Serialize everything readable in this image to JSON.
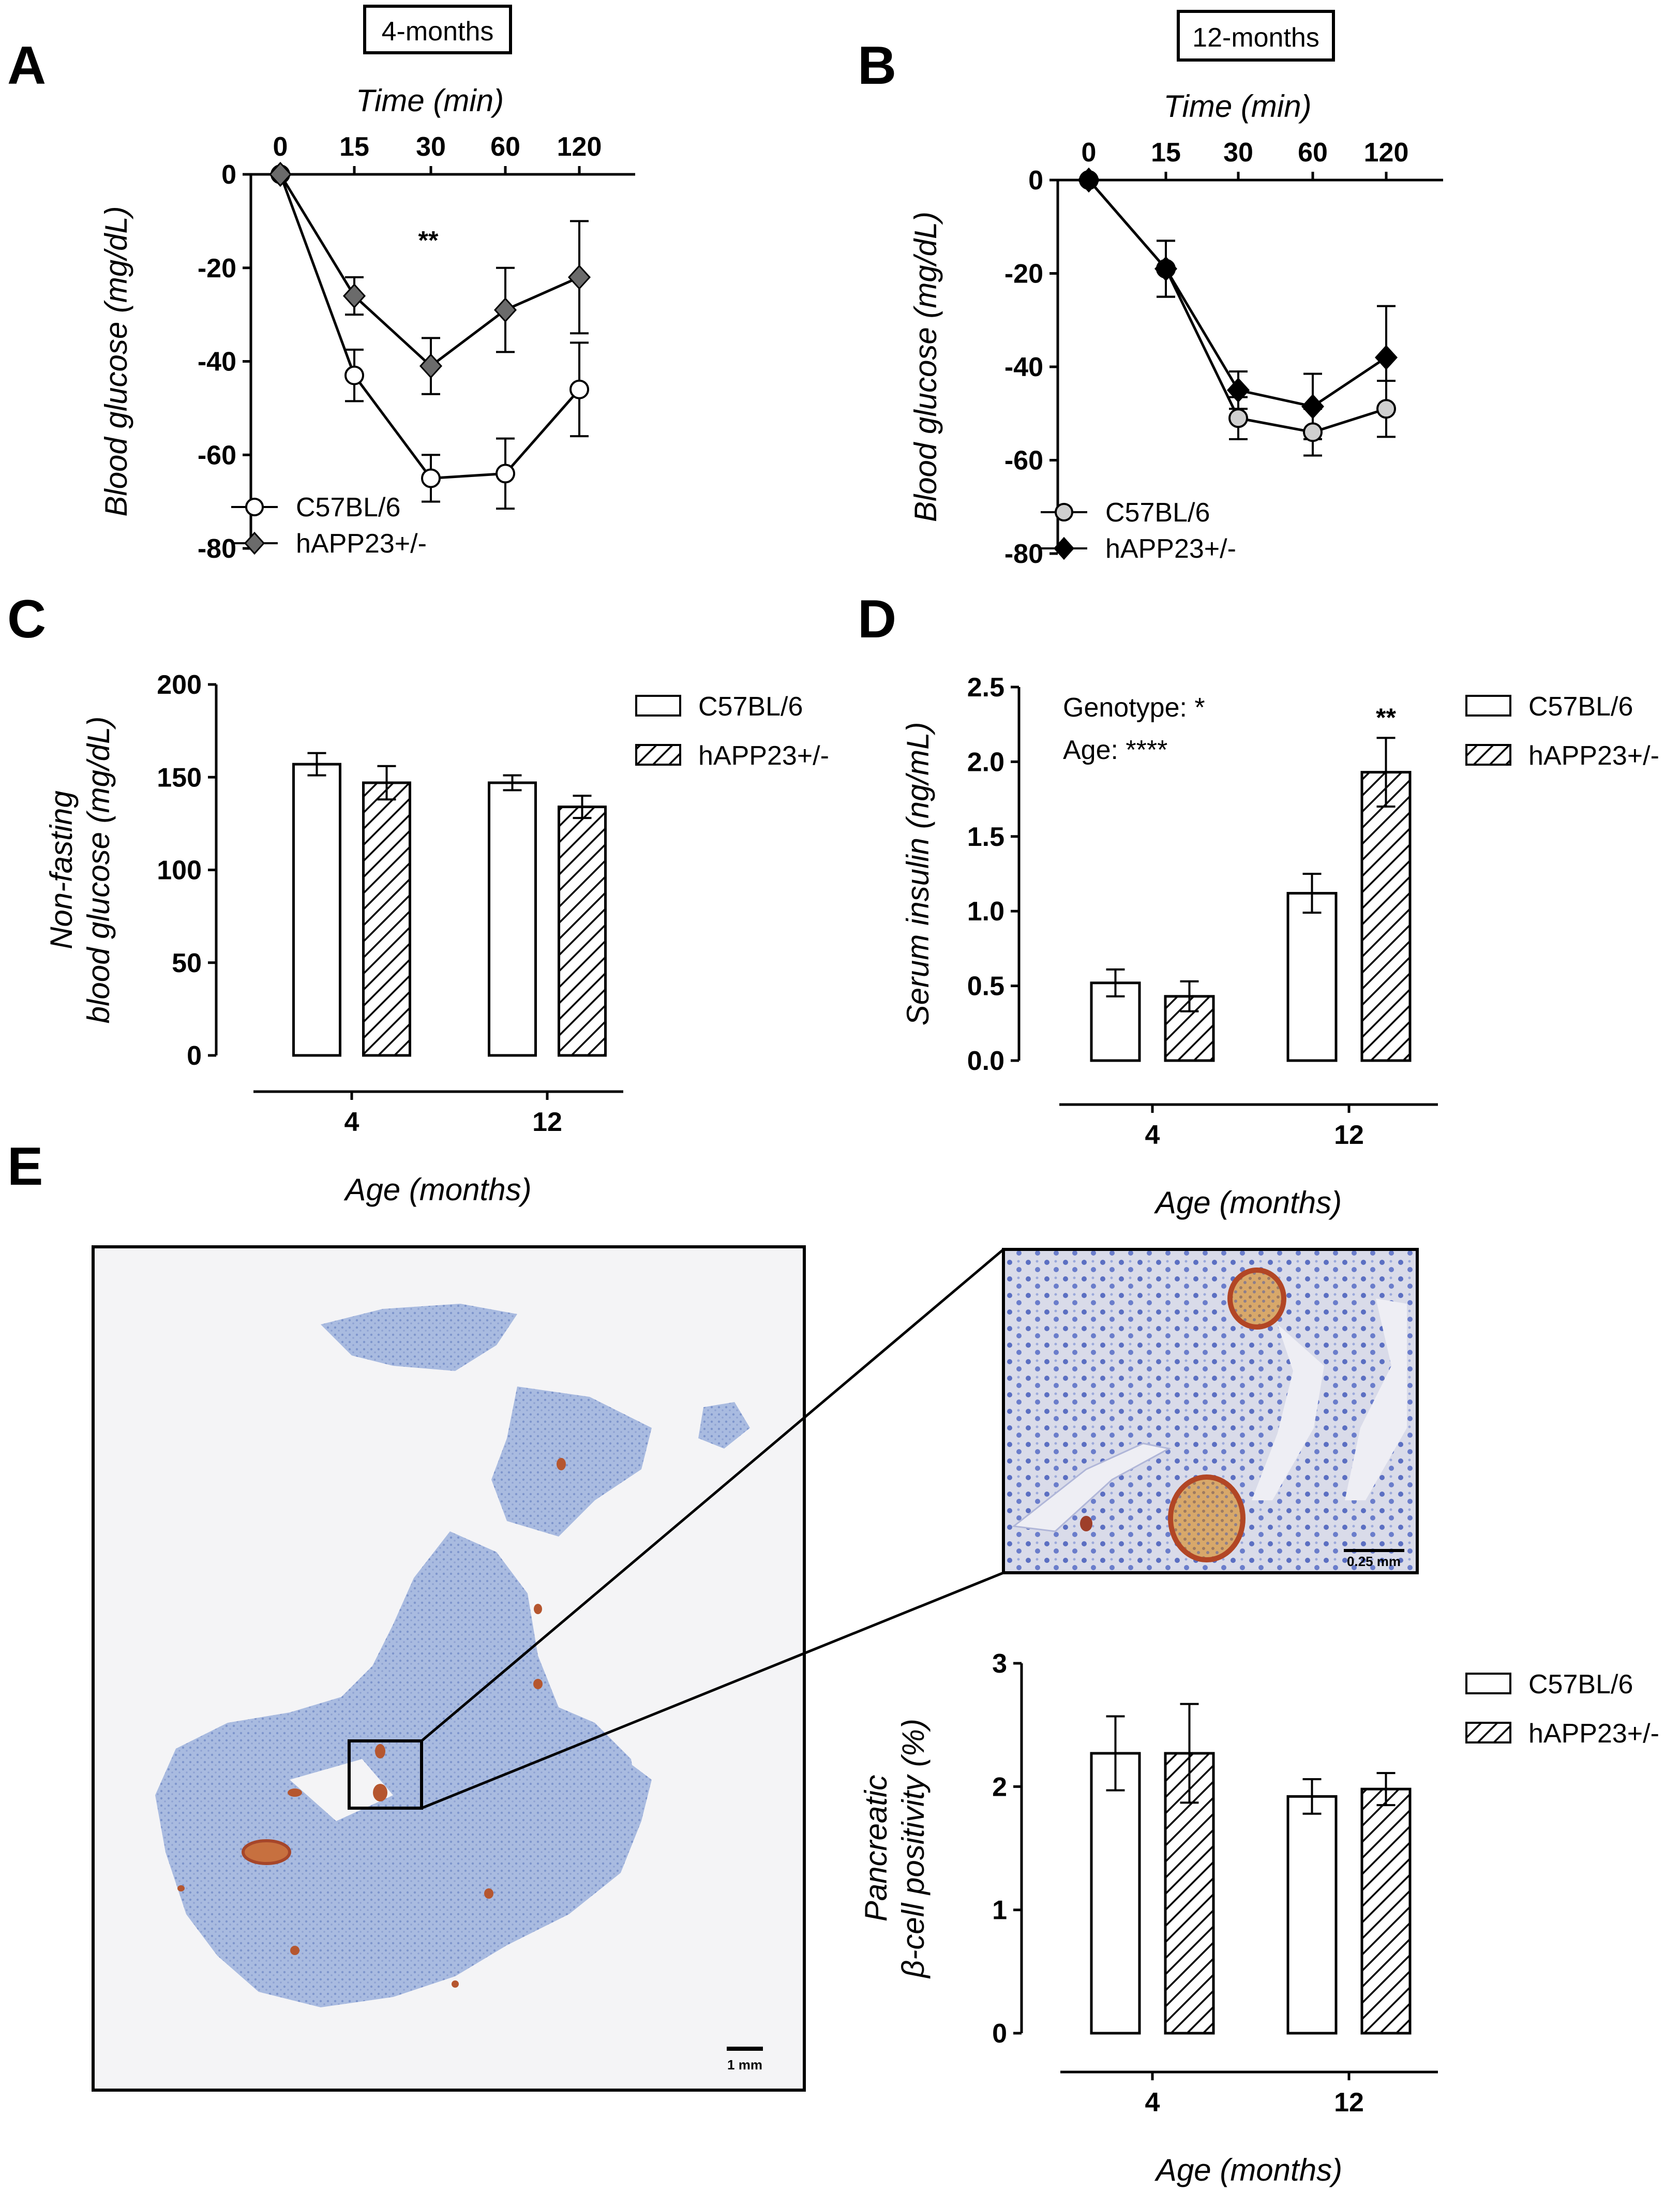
{
  "panels": {
    "A": {
      "label": "A",
      "box": "4-months"
    },
    "B": {
      "label": "B",
      "box": "12-months"
    },
    "C": {
      "label": "C"
    },
    "D": {
      "label": "D"
    },
    "E": {
      "label": "E"
    }
  },
  "scalebars": {
    "overview": "1 mm",
    "inset": "0.25 mm"
  },
  "colors": {
    "c57_fill_A": "#ffffff",
    "happ_fill_A": "#6b6b6b",
    "c57_fill_B": "#cfcfcf",
    "happ_fill_B": "#000000",
    "tissue": "#9fb2d9",
    "islet": "#b5562f"
  },
  "chart_data": [
    {
      "id": "A",
      "type": "line",
      "title": "4-months",
      "xlabel": "Time (min)",
      "ylabel": "Blood glucose (mg/dL)",
      "x": [
        0,
        15,
        30,
        60,
        120
      ],
      "x_ticks": [
        "0",
        "15",
        "30",
        "60",
        "120"
      ],
      "ylim": [
        -80,
        0
      ],
      "y_ticks": [
        "0",
        "-20",
        "-40",
        "-60",
        "-80"
      ],
      "series": [
        {
          "name": "C57BL/6",
          "marker": "circle",
          "values": [
            0,
            -43,
            -65,
            -64,
            -46
          ],
          "errors": [
            0,
            5.5,
            5,
            7.5,
            10
          ]
        },
        {
          "name": "hAPP23+/-",
          "marker": "diamond",
          "values": [
            0,
            -26,
            -41,
            -29,
            -22
          ],
          "errors": [
            0,
            4,
            6,
            9,
            12
          ]
        }
      ],
      "annotations": [
        {
          "x": 30,
          "text": "**"
        }
      ]
    },
    {
      "id": "B",
      "type": "line",
      "title": "12-months",
      "xlabel": "Time (min)",
      "ylabel": "Blood glucose (mg/dL)",
      "x": [
        0,
        15,
        30,
        60,
        120
      ],
      "x_ticks": [
        "0",
        "15",
        "30",
        "60",
        "120"
      ],
      "ylim": [
        -80,
        0
      ],
      "y_ticks": [
        "0",
        "-20",
        "-40",
        "-60",
        "-80"
      ],
      "series": [
        {
          "name": "C57BL/6",
          "marker": "circle",
          "values": [
            0,
            -19,
            -51,
            -54,
            -49
          ],
          "errors": [
            0,
            6,
            4.5,
            5,
            6
          ]
        },
        {
          "name": "hAPP23+/-",
          "marker": "diamond",
          "values": [
            0,
            -19,
            -45,
            -48.5,
            -38
          ],
          "errors": [
            0,
            6,
            4,
            7,
            11
          ]
        }
      ]
    },
    {
      "id": "C",
      "type": "bar",
      "xlabel": "Age (months)",
      "ylabel": [
        "Non-fasting",
        "blood glucose (mg/dL)"
      ],
      "categories": [
        "4",
        "12"
      ],
      "ylim": [
        0,
        200
      ],
      "y_ticks": [
        "0",
        "50",
        "100",
        "150",
        "200"
      ],
      "series": [
        {
          "name": "C57BL/6",
          "pattern": "open",
          "values": [
            157,
            147
          ],
          "errors": [
            6,
            4
          ]
        },
        {
          "name": "hAPP23+/-",
          "pattern": "hatched",
          "values": [
            147,
            134
          ],
          "errors": [
            9,
            6
          ]
        }
      ]
    },
    {
      "id": "D",
      "type": "bar",
      "xlabel": "Age (months)",
      "ylabel": [
        "Serum insulin (ng/mL)"
      ],
      "categories": [
        "4",
        "12"
      ],
      "ylim": [
        0,
        2.5
      ],
      "y_ticks": [
        "0.0",
        "0.5",
        "1.0",
        "1.5",
        "2.0",
        "2.5"
      ],
      "series": [
        {
          "name": "C57BL/6",
          "pattern": "open",
          "values": [
            0.52,
            1.12
          ],
          "errors": [
            0.09,
            0.13
          ]
        },
        {
          "name": "hAPP23+/-",
          "pattern": "hatched",
          "values": [
            0.43,
            1.93
          ],
          "errors": [
            0.1,
            0.23
          ]
        }
      ],
      "stats": [
        "Genotype: *",
        "Age: ****"
      ],
      "annotations": [
        {
          "category": "12",
          "series": "hAPP23+/-",
          "text": "**"
        }
      ]
    },
    {
      "id": "E",
      "type": "bar",
      "xlabel": "Age (months)",
      "ylabel": [
        "Pancreatic",
        "β-cell positivity (%)"
      ],
      "categories": [
        "4",
        "12"
      ],
      "ylim": [
        0,
        3
      ],
      "y_ticks": [
        "0",
        "1",
        "2",
        "3"
      ],
      "series": [
        {
          "name": "C57BL/6",
          "pattern": "open",
          "values": [
            2.27,
            1.92
          ],
          "errors": [
            0.3,
            0.14
          ]
        },
        {
          "name": "hAPP23+/-",
          "pattern": "hatched",
          "values": [
            2.27,
            1.98
          ],
          "errors": [
            0.4,
            0.13
          ]
        }
      ]
    }
  ]
}
